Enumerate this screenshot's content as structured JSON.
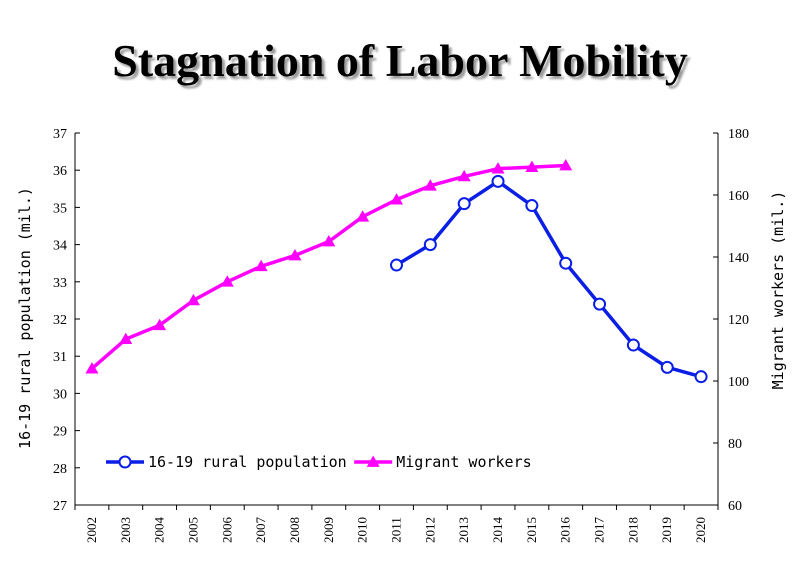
{
  "chart_data": {
    "type": "line",
    "title": "Stagnation of Labor Mobility",
    "x": [
      2002,
      2003,
      2004,
      2005,
      2006,
      2007,
      2008,
      2009,
      2010,
      2011,
      2012,
      2013,
      2014,
      2015,
      2016,
      2017,
      2018,
      2019,
      2020
    ],
    "xtick_labels": [
      "2002",
      "2003",
      "2004",
      "2005",
      "2006",
      "2007",
      "2008",
      "2009",
      "2010",
      "2011",
      "2012",
      "2013",
      "2014",
      "2015",
      "2016",
      "2017",
      "2018",
      "2019",
      "2020"
    ],
    "ylabel": "16-19 rural population (mil.)",
    "ylim": [
      27,
      37
    ],
    "yticks": [
      27,
      28,
      29,
      30,
      31,
      32,
      33,
      34,
      35,
      36,
      37
    ],
    "y2label": "Migrant workers (mil.)",
    "y2lim": [
      60,
      180
    ],
    "y2ticks": [
      60,
      80,
      100,
      120,
      140,
      160,
      180
    ],
    "grid": false,
    "legend_position": "lower-left",
    "series": [
      {
        "name": "16-19 rural population",
        "axis": "left",
        "color": "#0a1ee6",
        "marker": "circle",
        "x": [
          2011,
          2012,
          2013,
          2014,
          2015,
          2016,
          2017,
          2018,
          2019,
          2020
        ],
        "values": [
          33.45,
          34.0,
          35.1,
          35.7,
          35.05,
          33.5,
          32.4,
          31.3,
          30.7,
          30.45
        ]
      },
      {
        "name": "Migrant workers",
        "axis": "right",
        "color": "#ff00ff",
        "marker": "triangle",
        "x": [
          2002,
          2003,
          2004,
          2005,
          2006,
          2007,
          2008,
          2009,
          2010,
          2011,
          2012,
          2013,
          2014,
          2015,
          2016
        ],
        "values": [
          104,
          113.5,
          118,
          126,
          132,
          137,
          140.5,
          145,
          153,
          158.5,
          163,
          166,
          168.5,
          169,
          169.5
        ]
      }
    ]
  }
}
